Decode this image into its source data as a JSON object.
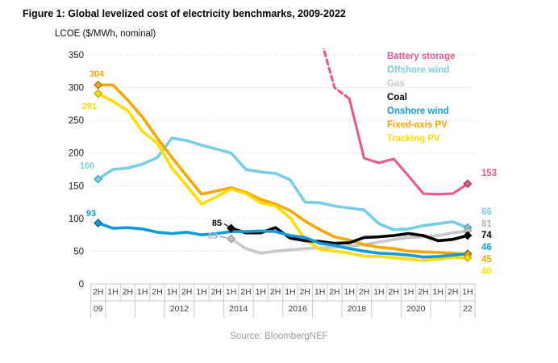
{
  "title": "Figure 1: Global levelized cost of electricity benchmarks, 2009-2022",
  "subtitle": "LCOE ($/MWh, nominal)",
  "source": "Source: BloombergNEF",
  "chart_data": {
    "type": "line",
    "title": "Figure 1: Global levelized cost of electricity benchmarks, 2009-2022",
    "ylabel": "LCOE ($/MWh, nominal)",
    "ylim": [
      0,
      350
    ],
    "y_ticks": [
      350,
      300,
      250,
      200,
      150,
      100,
      50,
      0
    ],
    "grid": "horizontal-dotted",
    "legend_position": "top-right",
    "x_categories": [
      "2H09",
      "1H10",
      "2H10",
      "1H11",
      "2H11",
      "1H12",
      "2H12",
      "1H13",
      "2H13",
      "1H14",
      "2H14",
      "1H15",
      "2H15",
      "1H16",
      "2H16",
      "1H17",
      "2H17",
      "1H18",
      "2H18",
      "1H19",
      "2H19",
      "1H20",
      "2H20",
      "1H21",
      "2H21",
      "1H22"
    ],
    "x_half_labels": [
      "2H",
      "1H",
      "2H",
      "1H",
      "2H",
      "1H",
      "2H",
      "1H",
      "2H",
      "1H",
      "2H",
      "1H",
      "2H",
      "1H",
      "2H",
      "1H",
      "2H",
      "1H",
      "2H",
      "1H",
      "2H",
      "1H",
      "2H",
      "1H",
      "2H",
      "1H"
    ],
    "x_year_row": [
      {
        "label": "09",
        "span": 1
      },
      {
        "label": "",
        "span": 2
      },
      {
        "label": "",
        "span": 2
      },
      {
        "label": "2012",
        "span": 2
      },
      {
        "label": "",
        "span": 2
      },
      {
        "label": "2014",
        "span": 2
      },
      {
        "label": "",
        "span": 2
      },
      {
        "label": "2016",
        "span": 2
      },
      {
        "label": "",
        "span": 2
      },
      {
        "label": "2018",
        "span": 2
      },
      {
        "label": "",
        "span": 2
      },
      {
        "label": "2020",
        "span": 2
      },
      {
        "label": "",
        "span": 2
      },
      {
        "label": "22",
        "span": 1
      }
    ],
    "series": [
      {
        "name": "Battery storage",
        "color": "#E8578F",
        "marker_stroke": "#8d3558",
        "dashed_until_index": 17,
        "start_label": null,
        "end_label": "153",
        "values": [
          null,
          null,
          null,
          null,
          null,
          null,
          null,
          null,
          null,
          null,
          null,
          null,
          null,
          null,
          null,
          380,
          300,
          283,
          192,
          185,
          191,
          165,
          138,
          137,
          138,
          153
        ]
      },
      {
        "name": "Offshore wind",
        "color": "#79CEE6",
        "marker_stroke": "#3d9ab8",
        "start_label": "160",
        "end_label": "86",
        "values": [
          160,
          175,
          177,
          183,
          193,
          223,
          219,
          212,
          206,
          200,
          175,
          171,
          169,
          159,
          125,
          124,
          119,
          116,
          113,
          92,
          83,
          84,
          89,
          92,
          95,
          86
        ]
      },
      {
        "name": "Gas",
        "color": "#C8C8C8",
        "marker_stroke": "#999999",
        "start_label": "69",
        "end_label": "81",
        "values": [
          null,
          null,
          null,
          null,
          null,
          null,
          null,
          null,
          null,
          69,
          54,
          47,
          50,
          52,
          54,
          55,
          56,
          58,
          60,
          64,
          68,
          71,
          72,
          74,
          78,
          81
        ]
      },
      {
        "name": "Coal",
        "color": "#000000",
        "marker_stroke": "#000000",
        "start_label": "85",
        "end_label": "74",
        "values": [
          null,
          null,
          null,
          null,
          null,
          null,
          null,
          null,
          null,
          85,
          78,
          78,
          86,
          70,
          66,
          65,
          62,
          63,
          71,
          72,
          74,
          77,
          74,
          66,
          68,
          74
        ]
      },
      {
        "name": "Onshore wind",
        "color": "#0E9BD8",
        "marker_stroke": "#075f86",
        "start_label": "93",
        "end_label": "46",
        "values": [
          93,
          85,
          86,
          84,
          79,
          77,
          79,
          75,
          77,
          80,
          80,
          81,
          80,
          74,
          71,
          62,
          59,
          54,
          50,
          47,
          46,
          44,
          41,
          42,
          44,
          46
        ]
      },
      {
        "name": "Fixed-axis PV",
        "color": "#F6A800",
        "marker_stroke": "#a96f00",
        "start_label": "304",
        "end_label": "45",
        "values": [
          304,
          304,
          281,
          255,
          223,
          193,
          165,
          137,
          142,
          147,
          140,
          129,
          122,
          112,
          96,
          83,
          72,
          67,
          60,
          56,
          54,
          50,
          49,
          48,
          47,
          45
        ]
      },
      {
        "name": "Tracking PV",
        "color": "#FFDD00",
        "marker_stroke": "#bfa100",
        "start_label": "291",
        "end_label": "40",
        "values": [
          291,
          279,
          265,
          233,
          215,
          177,
          150,
          122,
          133,
          145,
          138,
          124,
          119,
          101,
          68,
          53,
          50,
          47,
          42,
          42,
          40,
          38,
          36,
          38,
          40,
          40
        ]
      }
    ],
    "colors": {
      "grid": "#dadada",
      "axis_border": "#c9c9c9",
      "tick_text": "#3c3c3c",
      "source_text": "#9b9b9b"
    }
  }
}
